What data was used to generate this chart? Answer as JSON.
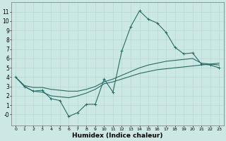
{
  "xlabel": "Humidex (Indice chaleur)",
  "bg_color": "#cce8e4",
  "grid_color": "#b8d8d2",
  "line_color": "#2a6b65",
  "xlim": [
    -0.5,
    23.5
  ],
  "ylim": [
    -1.2,
    12
  ],
  "xticks": [
    0,
    1,
    2,
    3,
    4,
    5,
    6,
    7,
    8,
    9,
    10,
    11,
    12,
    13,
    14,
    15,
    16,
    17,
    18,
    19,
    20,
    21,
    22,
    23
  ],
  "yticks": [
    0,
    1,
    2,
    3,
    4,
    5,
    6,
    7,
    8,
    9,
    10,
    11
  ],
  "line1_x": [
    0,
    1,
    2,
    3,
    4,
    5,
    6,
    7,
    8,
    9,
    10,
    11,
    12,
    13,
    14,
    15,
    16,
    17,
    18,
    19,
    20,
    21,
    22,
    23
  ],
  "line1_y": [
    4.0,
    3.0,
    2.5,
    2.6,
    1.7,
    1.5,
    -0.2,
    0.2,
    1.1,
    1.1,
    3.8,
    2.4,
    6.8,
    9.4,
    11.1,
    10.2,
    9.8,
    8.8,
    7.2,
    6.5,
    6.6,
    5.4,
    5.3,
    5.0
  ],
  "line2_x": [
    0,
    1,
    2,
    3,
    4,
    5,
    6,
    7,
    8,
    9,
    10,
    11,
    12,
    13,
    14,
    15,
    16,
    17,
    18,
    19,
    20,
    21,
    22,
    23
  ],
  "line2_y": [
    4.0,
    3.1,
    2.9,
    2.9,
    2.7,
    2.6,
    2.5,
    2.5,
    2.7,
    3.0,
    3.5,
    3.8,
    4.2,
    4.6,
    5.0,
    5.3,
    5.5,
    5.7,
    5.8,
    5.9,
    6.0,
    5.5,
    5.4,
    5.3
  ],
  "line3_x": [
    0,
    1,
    2,
    3,
    4,
    5,
    6,
    7,
    8,
    9,
    10,
    11,
    12,
    13,
    14,
    15,
    16,
    17,
    18,
    19,
    20,
    21,
    22,
    23
  ],
  "line3_y": [
    4.0,
    3.0,
    2.5,
    2.4,
    2.0,
    1.9,
    1.8,
    2.0,
    2.3,
    2.7,
    3.3,
    3.5,
    3.8,
    4.1,
    4.4,
    4.6,
    4.8,
    4.9,
    5.0,
    5.1,
    5.2,
    5.3,
    5.4,
    5.5
  ]
}
